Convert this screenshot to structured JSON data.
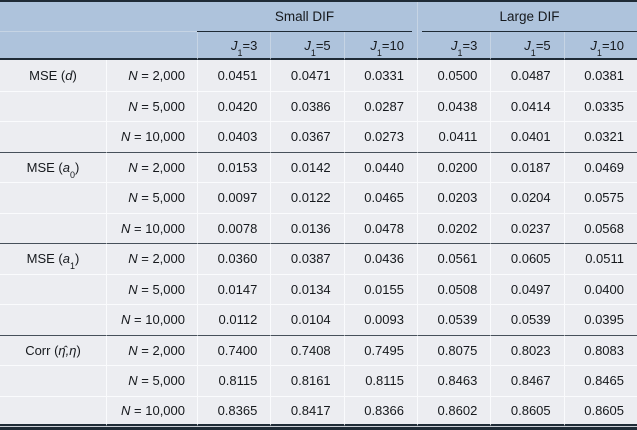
{
  "header": {
    "spanners": [
      {
        "label": "Small DIF"
      },
      {
        "label": "Large DIF"
      }
    ],
    "columns": [
      {
        "var": "J",
        "sub": "1",
        "rest": "=3"
      },
      {
        "var": "J",
        "sub": "1",
        "rest": "=5"
      },
      {
        "var": "J",
        "sub": "1",
        "rest": "=10"
      },
      {
        "var": "J",
        "sub": "1",
        "rest": "=3"
      },
      {
        "var": "J",
        "sub": "1",
        "rest": "=5"
      },
      {
        "var": "J",
        "sub": "1",
        "rest": "=10"
      }
    ]
  },
  "groups": [
    {
      "label": {
        "prefix": "MSE (",
        "var": "d",
        "sub": "",
        "suffix": ")"
      },
      "rows": [
        {
          "n": {
            "var": "N",
            "rest": " = 2,000"
          },
          "values": [
            "0.0451",
            "0.0471",
            "0.0331",
            "0.0500",
            "0.0487",
            "0.0381"
          ]
        },
        {
          "n": {
            "var": "N",
            "rest": " = 5,000"
          },
          "values": [
            "0.0420",
            "0.0386",
            "0.0287",
            "0.0438",
            "0.0414",
            "0.0335"
          ]
        },
        {
          "n": {
            "var": "N",
            "rest": " = 10,000"
          },
          "values": [
            "0.0403",
            "0.0367",
            "0.0273",
            "0.0411",
            "0.0401",
            "0.0321"
          ]
        }
      ]
    },
    {
      "label": {
        "prefix": "MSE (",
        "var": "a",
        "sub": "0",
        "suffix": ")"
      },
      "rows": [
        {
          "n": {
            "var": "N",
            "rest": " = 2,000"
          },
          "values": [
            "0.0153",
            "0.0142",
            "0.0440",
            "0.0200",
            "0.0187",
            "0.0469"
          ]
        },
        {
          "n": {
            "var": "N",
            "rest": " = 5,000"
          },
          "values": [
            "0.0097",
            "0.0122",
            "0.0465",
            "0.0203",
            "0.0204",
            "0.0575"
          ]
        },
        {
          "n": {
            "var": "N",
            "rest": " = 10,000"
          },
          "values": [
            "0.0078",
            "0.0136",
            "0.0478",
            "0.0202",
            "0.0237",
            "0.0568"
          ]
        }
      ]
    },
    {
      "label": {
        "prefix": "MSE (",
        "var": "a",
        "sub": "1",
        "suffix": ")"
      },
      "rows": [
        {
          "n": {
            "var": "N",
            "rest": " = 2,000"
          },
          "values": [
            "0.0360",
            "0.0387",
            "0.0436",
            "0.0561",
            "0.0605",
            "0.0511"
          ]
        },
        {
          "n": {
            "var": "N",
            "rest": " = 5,000"
          },
          "values": [
            "0.0147",
            "0.0134",
            "0.0155",
            "0.0508",
            "0.0497",
            "0.0400"
          ]
        },
        {
          "n": {
            "var": "N",
            "rest": " = 10,000"
          },
          "values": [
            "0.0112",
            "0.0104",
            "0.0093",
            "0.0539",
            "0.0539",
            "0.0395"
          ]
        }
      ]
    },
    {
      "label": {
        "prefix": "Corr (",
        "var": "η̂,η",
        "sub": "",
        "suffix": ")"
      },
      "rows": [
        {
          "n": {
            "var": "N",
            "rest": " = 2,000"
          },
          "values": [
            "0.7400",
            "0.7408",
            "0.7495",
            "0.8075",
            "0.8023",
            "0.8083"
          ]
        },
        {
          "n": {
            "var": "N",
            "rest": " = 5,000"
          },
          "values": [
            "0.8115",
            "0.8161",
            "0.8115",
            "0.8463",
            "0.8467",
            "0.8465"
          ]
        },
        {
          "n": {
            "var": "N",
            "rest": " = 10,000"
          },
          "values": [
            "0.8365",
            "0.8417",
            "0.8366",
            "0.8602",
            "0.8605",
            "0.8605"
          ]
        }
      ]
    }
  ],
  "colors": {
    "header_bg": "#aec3dc",
    "header_sep": "#c6d4e4",
    "body_bg": "#ecedf1",
    "body_sep": "#fafbfd",
    "rule_dark": "#1f2b36",
    "rule_mid": "#46505a"
  }
}
